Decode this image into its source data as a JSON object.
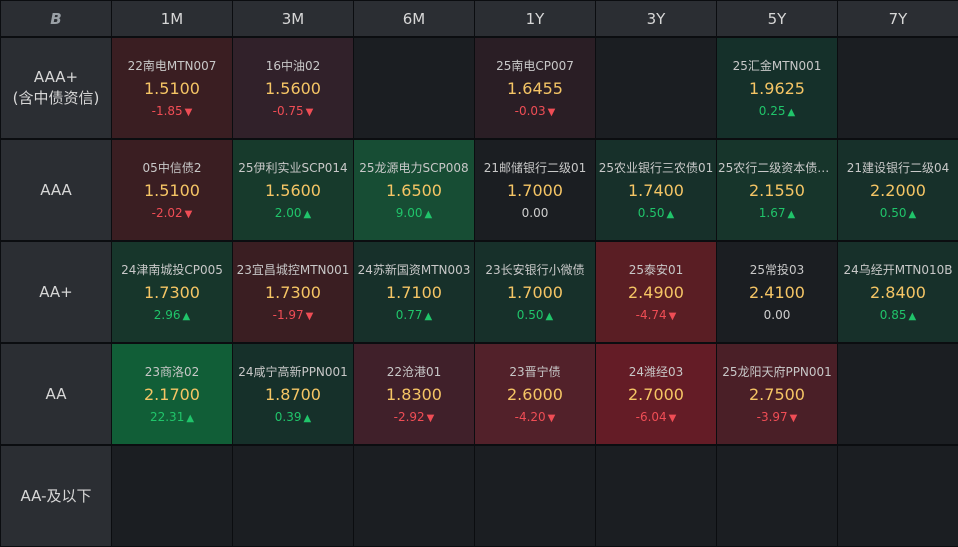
{
  "corner_logo": "B",
  "columns": [
    "1M",
    "3M",
    "6M",
    "1Y",
    "3Y",
    "5Y",
    "7Y"
  ],
  "rows": [
    {
      "label_lines": [
        "AAA+",
        "(含中债资信)"
      ],
      "cells": [
        {
          "name": "22南电MTN007",
          "rate": "1.5100",
          "change": "-1.85",
          "dir": "down",
          "color": "#3a1e22"
        },
        {
          "name": "16中油02",
          "rate": "1.5600",
          "change": "-0.75",
          "dir": "down",
          "color": "#31212a"
        },
        null,
        {
          "name": "25南电CP007",
          "rate": "1.6455",
          "change": "-0.03",
          "dir": "down",
          "color": "#2a1e25"
        },
        null,
        {
          "name": "25汇金MTN001",
          "rate": "1.9625",
          "change": "0.25",
          "dir": "up",
          "color": "#15302a"
        },
        null
      ]
    },
    {
      "label_lines": [
        "AAA"
      ],
      "cells": [
        {
          "name": "05中信债2",
          "rate": "1.5100",
          "change": "-2.02",
          "dir": "down",
          "color": "#3a1e22"
        },
        {
          "name": "25伊利实业SCP014",
          "rate": "1.5600",
          "change": "2.00",
          "dir": "up",
          "color": "#173a2c"
        },
        {
          "name": "25龙源电力SCP008",
          "rate": "1.6500",
          "change": "9.00",
          "dir": "up",
          "color": "#174d34"
        },
        {
          "name": "21邮储银行二级01",
          "rate": "1.7000",
          "change": "0.00",
          "dir": "flat",
          "color": "#1b1e22"
        },
        {
          "name": "25农业银行三农债01",
          "rate": "1.7400",
          "change": "0.50",
          "dir": "up",
          "color": "#17302a"
        },
        {
          "name": "25农行二级资本债0...",
          "rate": "2.1550",
          "change": "1.67",
          "dir": "up",
          "color": "#17352b"
        },
        {
          "name": "21建设银行二级04",
          "rate": "2.2000",
          "change": "0.50",
          "dir": "up",
          "color": "#17302a"
        }
      ]
    },
    {
      "label_lines": [
        "AA+"
      ],
      "cells": [
        {
          "name": "24津南城投CP005",
          "rate": "1.7300",
          "change": "2.96",
          "dir": "up",
          "color": "#17362b"
        },
        {
          "name": "23宜昌城控MTN001",
          "rate": "1.7300",
          "change": "-1.97",
          "dir": "down",
          "color": "#3a1e22"
        },
        {
          "name": "24苏新国资MTN003",
          "rate": "1.7100",
          "change": "0.77",
          "dir": "up",
          "color": "#17302a"
        },
        {
          "name": "23长安银行小微债",
          "rate": "1.7000",
          "change": "0.50",
          "dir": "up",
          "color": "#17302a"
        },
        {
          "name": "25泰安01",
          "rate": "2.4900",
          "change": "-4.74",
          "dir": "down",
          "color": "#5a1e24"
        },
        {
          "name": "25常投03",
          "rate": "2.4100",
          "change": "0.00",
          "dir": "flat",
          "color": "#1b1e22"
        },
        {
          "name": "24乌经开MTN010B",
          "rate": "2.8400",
          "change": "0.85",
          "dir": "up",
          "color": "#17302a"
        }
      ]
    },
    {
      "label_lines": [
        "AA"
      ],
      "cells": [
        {
          "name": "23商洛02",
          "rate": "2.1700",
          "change": "22.31",
          "dir": "up",
          "color": "#115e37"
        },
        {
          "name": "24咸宁高新PPN001",
          "rate": "1.8700",
          "change": "0.39",
          "dir": "up",
          "color": "#16302a"
        },
        {
          "name": "22沧港01",
          "rate": "1.8300",
          "change": "-2.92",
          "dir": "down",
          "color": "#40202a"
        },
        {
          "name": "23晋宁债",
          "rate": "2.6000",
          "change": "-4.20",
          "dir": "down",
          "color": "#52212a"
        },
        {
          "name": "24潍经03",
          "rate": "2.7000",
          "change": "-6.04",
          "dir": "down",
          "color": "#641c26"
        },
        {
          "name": "25龙阳天府PPN001",
          "rate": "2.7500",
          "change": "-3.97",
          "dir": "down",
          "color": "#4a1f27"
        },
        null
      ]
    },
    {
      "label_lines": [
        "AA-及以下"
      ],
      "cells": [
        null,
        null,
        null,
        null,
        null,
        null,
        null
      ]
    }
  ],
  "arrows": {
    "up": "▲",
    "down": "▼"
  },
  "empty_color": "#1b1e22"
}
